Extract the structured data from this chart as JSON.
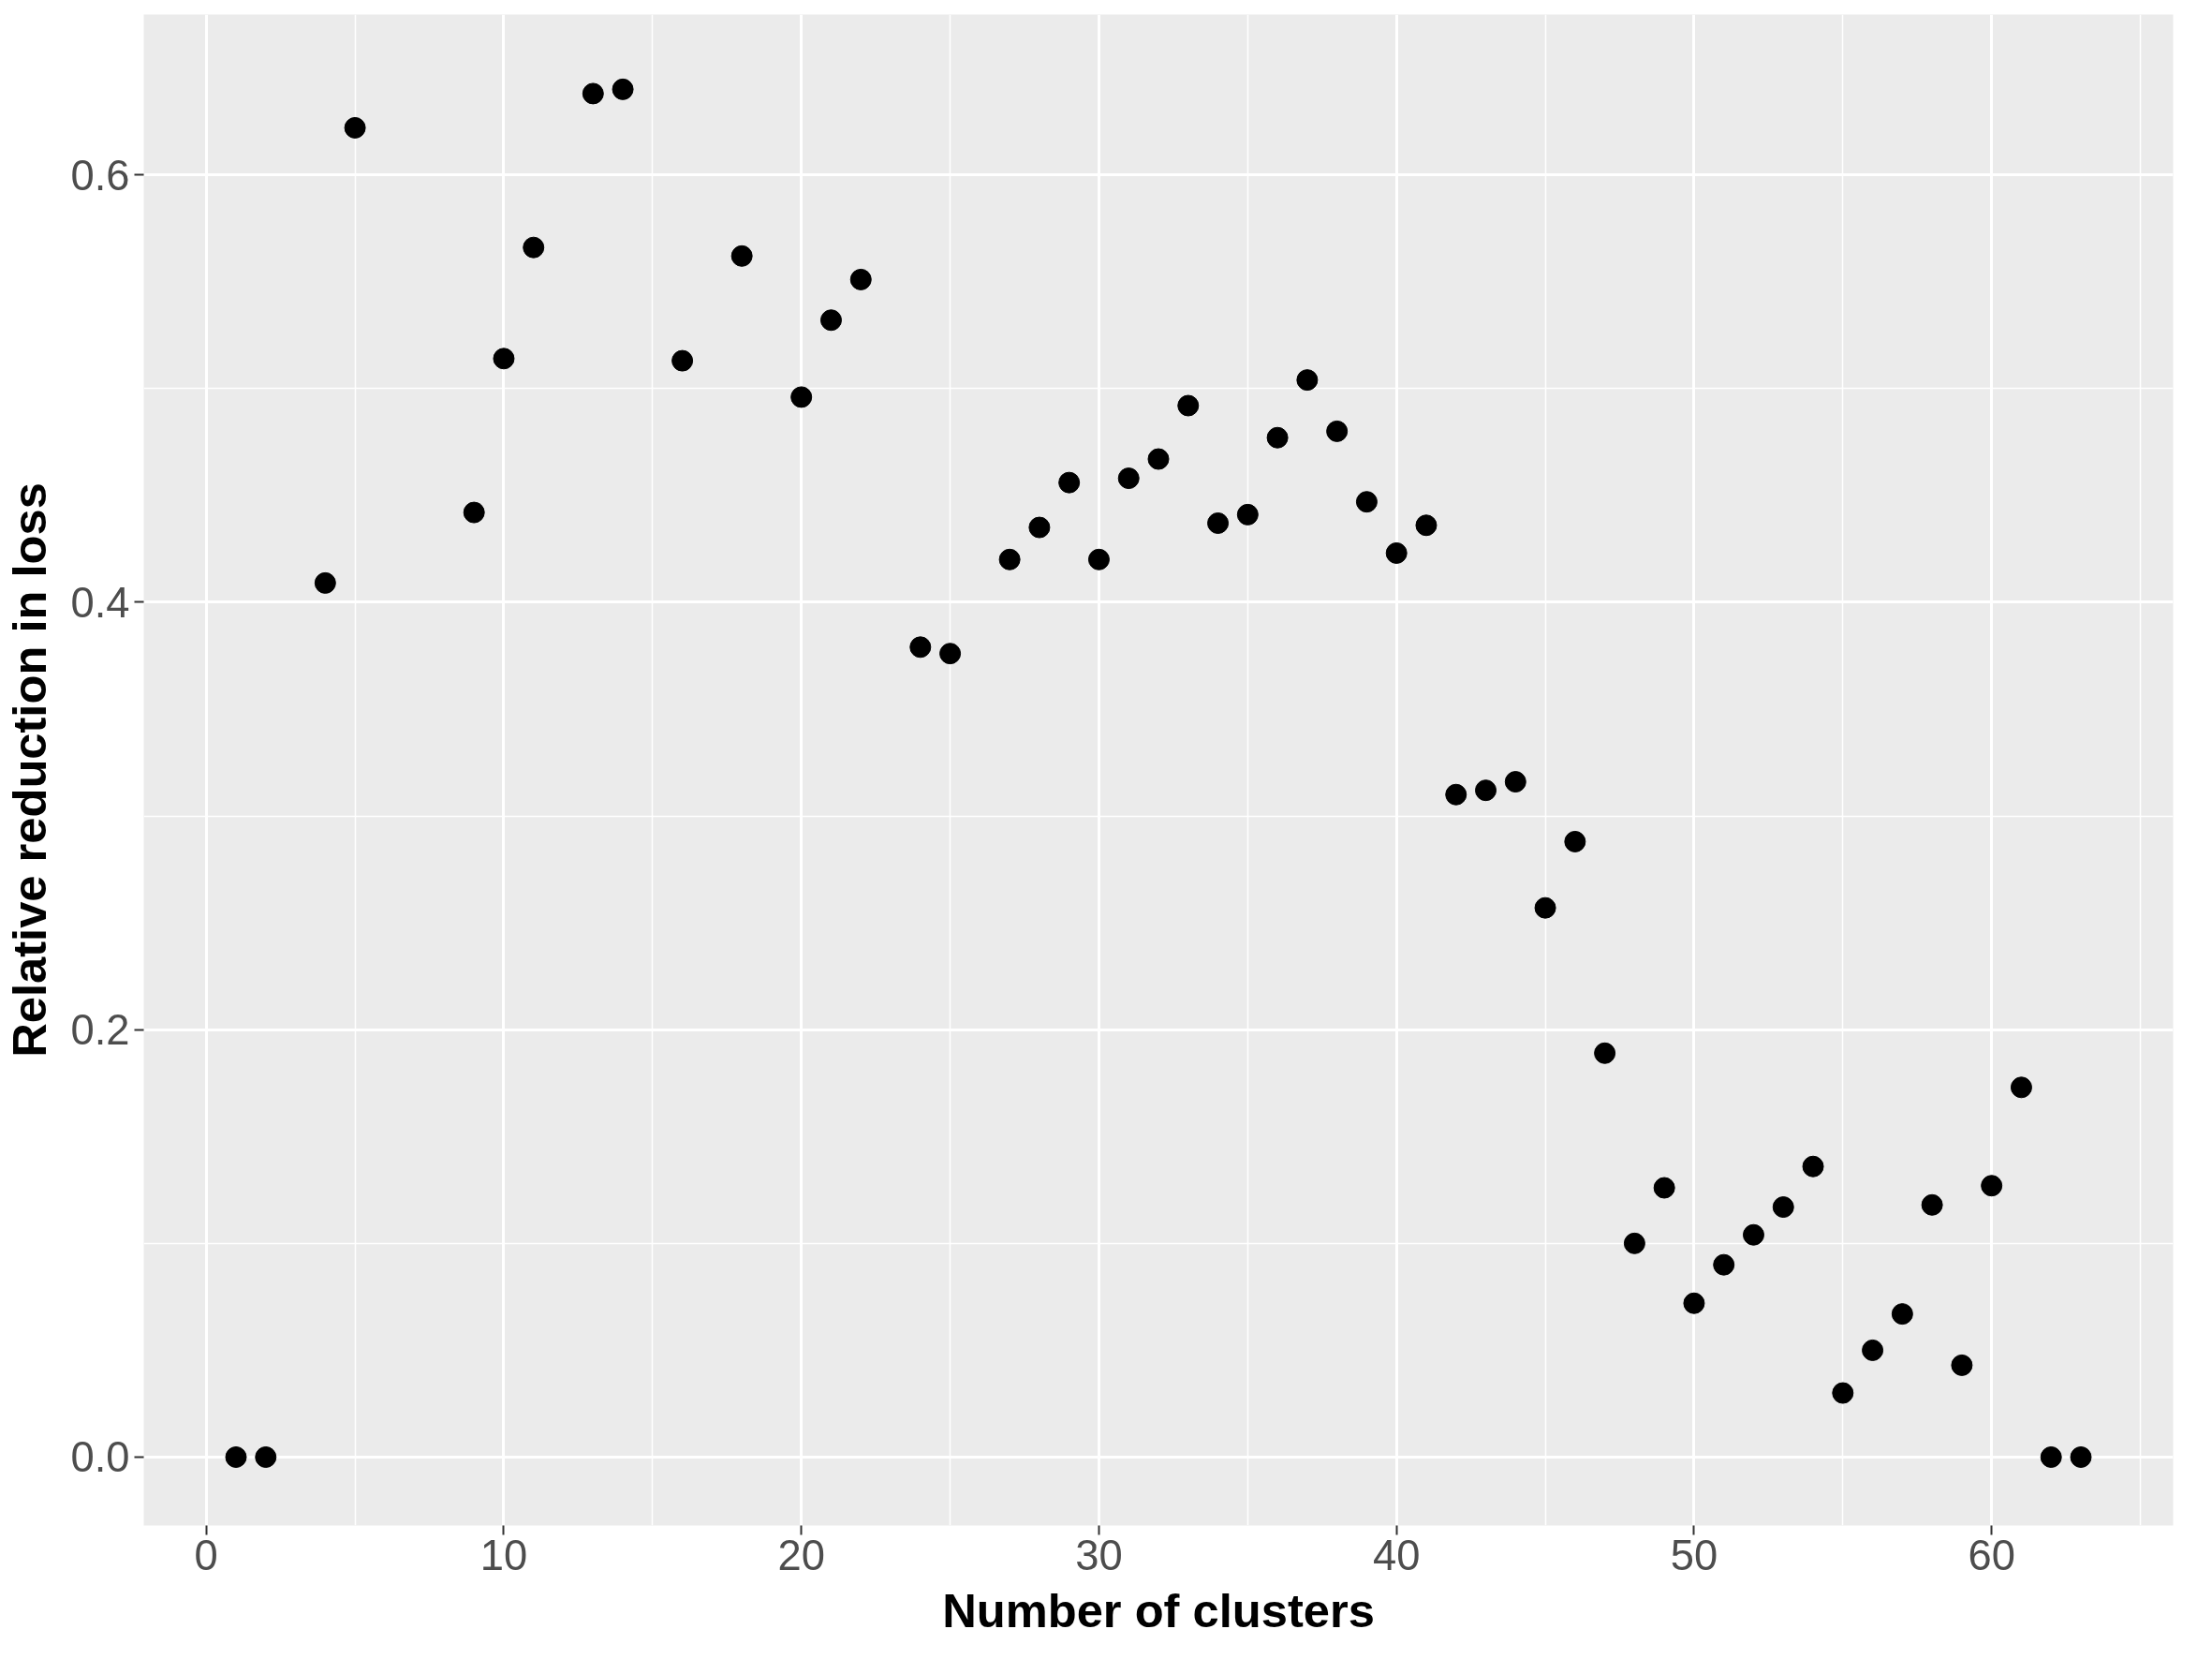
{
  "chart_data": {
    "type": "scatter",
    "xlabel": "Number of clusters",
    "ylabel": "Relative reduction in loss",
    "x": [
      1,
      2,
      4,
      5,
      9,
      10,
      11,
      13,
      14,
      16,
      18,
      20,
      21,
      22,
      24,
      25,
      27,
      28,
      29,
      30,
      31,
      32,
      33,
      34,
      35,
      36,
      37,
      38,
      39,
      40,
      41,
      42,
      43,
      44,
      45,
      46,
      47,
      48,
      49,
      50,
      51,
      52,
      53,
      54,
      55,
      56,
      57,
      58,
      59,
      60,
      61,
      62,
      63
    ],
    "series": [
      {
        "color": "#000000",
        "values": [
          0,
          0,
          0.409,
          0.622,
          0.442,
          0.514,
          0.566,
          0.638,
          0.64,
          0.513,
          0.562,
          0.496,
          0.532,
          0.551,
          0.379,
          0.376,
          0.42,
          0.435,
          0.456,
          0.42,
          0.458,
          0.467,
          0.492,
          0.437,
          0.441,
          0.477,
          0.504,
          0.48,
          0.447,
          0.423,
          0.436,
          0.31,
          0.312,
          0.316,
          0.257,
          0.288,
          0.189,
          0.1,
          0.126,
          0.072,
          0.09,
          0.104,
          0.117,
          0.136,
          0.03,
          0.05,
          0.067,
          0.118,
          0.043,
          0.127,
          0.173,
          0,
          0
        ]
      }
    ],
    "xlim": [
      -2.1,
      66.1
    ],
    "ylim": [
      -0.032,
      0.675
    ],
    "xticks": [
      0,
      10,
      20,
      30,
      40,
      50,
      60
    ],
    "yticks": [
      {
        "value": 0,
        "label": "0.0"
      },
      {
        "value": 0.2,
        "label": "0.2"
      },
      {
        "value": 0.4,
        "label": "0.4"
      },
      {
        "value": 0.6,
        "label": "0.6"
      }
    ],
    "grid": true,
    "marker": "circle"
  }
}
